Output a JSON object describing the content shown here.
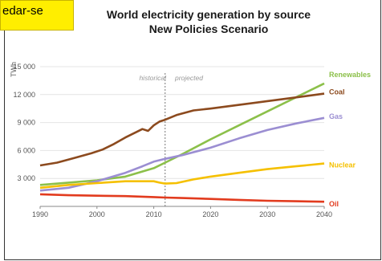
{
  "tag_text": "edar-se",
  "chart_data": {
    "type": "line",
    "title": "World electricity generation by source",
    "subtitle": "New Policies Scenario",
    "ylabel": "TWh",
    "xlabel": "",
    "xlim": [
      1990,
      2040
    ],
    "ylim": [
      0,
      15000
    ],
    "x_ticks": [
      "1990",
      "2000",
      "2010",
      "2020",
      "2030",
      "2040"
    ],
    "y_ticks": [
      "3 000",
      "6 000",
      "9 000",
      "12 000",
      "15 000"
    ],
    "annotations": {
      "historical": "historical",
      "projected": "projected",
      "divider_year": 2012
    },
    "grid": true,
    "series": [
      {
        "name": "Renewables",
        "color": "#8cc04a",
        "points": [
          [
            1990,
            2300
          ],
          [
            1995,
            2550
          ],
          [
            2000,
            2800
          ],
          [
            2005,
            3200
          ],
          [
            2010,
            4100
          ],
          [
            2012,
            4700
          ],
          [
            2015,
            5600
          ],
          [
            2020,
            7200
          ],
          [
            2025,
            8700
          ],
          [
            2030,
            10200
          ],
          [
            2035,
            11700
          ],
          [
            2040,
            13200
          ]
        ]
      },
      {
        "name": "Coal",
        "color": "#8c4a1e",
        "points": [
          [
            1990,
            4400
          ],
          [
            1993,
            4700
          ],
          [
            1996,
            5200
          ],
          [
            1999,
            5700
          ],
          [
            2001,
            6100
          ],
          [
            2003,
            6700
          ],
          [
            2005,
            7400
          ],
          [
            2007,
            8000
          ],
          [
            2008,
            8300
          ],
          [
            2009,
            8100
          ],
          [
            2010,
            8700
          ],
          [
            2011,
            9100
          ],
          [
            2012,
            9300
          ],
          [
            2014,
            9800
          ],
          [
            2017,
            10300
          ],
          [
            2020,
            10500
          ],
          [
            2025,
            10900
          ],
          [
            2030,
            11300
          ],
          [
            2035,
            11700
          ],
          [
            2040,
            12100
          ]
        ]
      },
      {
        "name": "Gas",
        "color": "#9b8ed2",
        "points": [
          [
            1990,
            1700
          ],
          [
            1995,
            2000
          ],
          [
            2000,
            2700
          ],
          [
            2005,
            3600
          ],
          [
            2008,
            4300
          ],
          [
            2010,
            4800
          ],
          [
            2012,
            5100
          ],
          [
            2015,
            5500
          ],
          [
            2020,
            6300
          ],
          [
            2025,
            7300
          ],
          [
            2030,
            8200
          ],
          [
            2035,
            8900
          ],
          [
            2040,
            9500
          ]
        ]
      },
      {
        "name": "Nuclear",
        "color": "#f5c000",
        "points": [
          [
            1990,
            2000
          ],
          [
            1995,
            2300
          ],
          [
            2000,
            2500
          ],
          [
            2005,
            2700
          ],
          [
            2010,
            2700
          ],
          [
            2011,
            2550
          ],
          [
            2012,
            2450
          ],
          [
            2014,
            2500
          ],
          [
            2017,
            2900
          ],
          [
            2020,
            3200
          ],
          [
            2025,
            3600
          ],
          [
            2030,
            4000
          ],
          [
            2035,
            4300
          ],
          [
            2040,
            4600
          ]
        ]
      },
      {
        "name": "Oil",
        "color": "#e23b1e",
        "points": [
          [
            1990,
            1300
          ],
          [
            1995,
            1200
          ],
          [
            2000,
            1150
          ],
          [
            2005,
            1100
          ],
          [
            2010,
            1000
          ],
          [
            2012,
            950
          ],
          [
            2015,
            900
          ],
          [
            2020,
            800
          ],
          [
            2025,
            700
          ],
          [
            2030,
            600
          ],
          [
            2035,
            550
          ],
          [
            2040,
            500
          ]
        ]
      }
    ]
  }
}
